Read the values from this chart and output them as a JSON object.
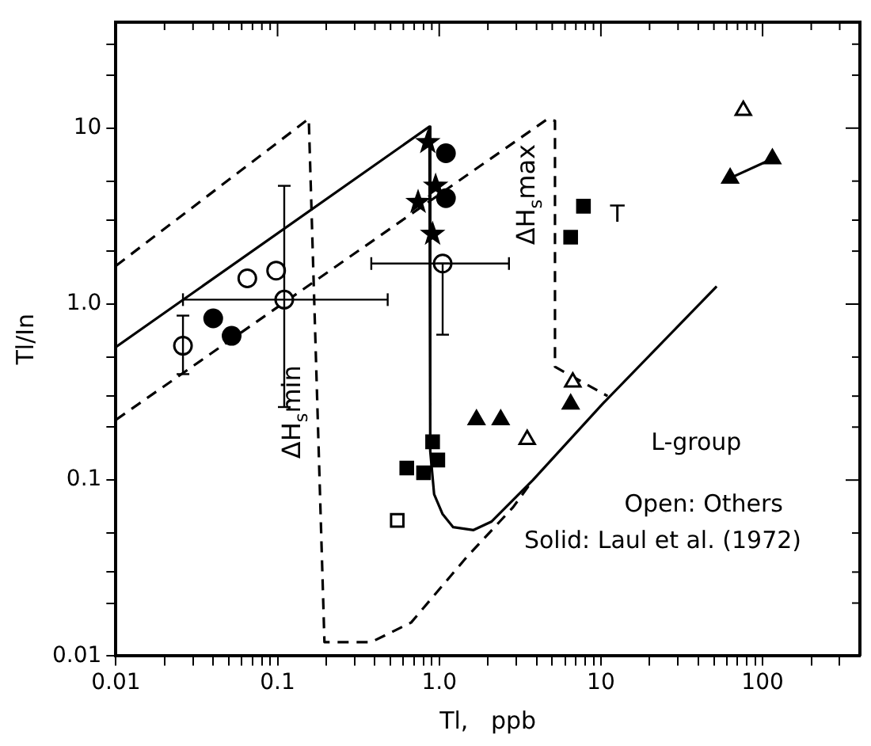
{
  "chart_data": {
    "type": "scatter",
    "xlabel": "Tl,   ppb",
    "ylabel": "Tl/In",
    "log": "xy",
    "grid": false,
    "legend": false,
    "xlim": [
      0.01,
      400
    ],
    "ylim": [
      0.01,
      40
    ],
    "xticks": [
      0.01,
      {
        "value": 0.02,
        "label": null
      },
      {
        "value": 0.03,
        "label": null
      },
      {
        "value": 0.04,
        "label": null
      },
      {
        "value": 0.05,
        "label": null
      },
      {
        "value": 0.06,
        "label": null
      },
      {
        "value": 0.07,
        "label": null
      },
      {
        "value": 0.08,
        "label": null
      },
      {
        "value": 0.09,
        "label": null
      },
      0.1,
      {
        "value": 0.2,
        "label": null
      },
      {
        "value": 0.3,
        "label": null
      },
      {
        "value": 0.4,
        "label": null
      },
      {
        "value": 0.5,
        "label": null
      },
      {
        "value": 0.6,
        "label": null
      },
      {
        "value": 0.7,
        "label": null
      },
      {
        "value": 0.8,
        "label": null
      },
      {
        "value": 0.9,
        "label": null
      },
      {
        "value": 1,
        "label": "1.0"
      },
      {
        "value": 2,
        "label": null
      },
      {
        "value": 3,
        "label": null
      },
      {
        "value": 4,
        "label": null
      },
      {
        "value": 5,
        "label": null
      },
      {
        "value": 6,
        "label": null
      },
      {
        "value": 7,
        "label": null
      },
      {
        "value": 8,
        "label": null
      },
      {
        "value": 9,
        "label": null
      },
      10,
      {
        "value": 20,
        "label": null
      },
      {
        "value": 30,
        "label": null
      },
      {
        "value": 40,
        "label": null
      },
      {
        "value": 50,
        "label": null
      },
      {
        "value": 60,
        "label": null
      },
      {
        "value": 70,
        "label": null
      },
      {
        "value": 80,
        "label": null
      },
      {
        "value": 90,
        "label": null
      },
      100,
      {
        "value": 200,
        "label": null
      },
      {
        "value": 300,
        "label": null
      }
    ],
    "yticks": [
      0.01,
      {
        "value": 0.02,
        "label": null
      },
      {
        "value": 0.03,
        "label": null
      },
      {
        "value": 0.05,
        "label": null
      },
      0.1,
      {
        "value": 0.2,
        "label": null
      },
      {
        "value": 0.3,
        "label": null
      },
      {
        "value": 0.5,
        "label": null
      },
      {
        "value": 1,
        "label": "1.0"
      },
      {
        "value": 2,
        "label": null
      },
      {
        "value": 3,
        "label": null
      },
      {
        "value": 5,
        "label": null
      },
      10,
      {
        "value": 20,
        "label": null
      },
      {
        "value": 30,
        "label": null
      }
    ],
    "series": [
      {
        "type": "line",
        "marker": "none",
        "line_style": "solid",
        "color": "#000000",
        "x": [
          0.01,
          0.87,
          0.88,
          0.93,
          1.05,
          1.22,
          1.63,
          2.1,
          3.8,
          10.2,
          52
        ],
        "values": [
          0.57,
          10.2,
          0.146,
          0.083,
          0.064,
          0.054,
          0.052,
          0.058,
          0.1,
          0.27,
          1.26
        ]
      },
      {
        "type": "line",
        "marker": "none",
        "line_style": "dashed",
        "color": "#000000",
        "x": [
          0.01,
          0.156,
          0.195,
          0.38,
          0.67,
          1.46,
          2.86,
          3.8
        ],
        "values": [
          1.65,
          11.3,
          0.012,
          0.012,
          0.0155,
          0.036,
          0.07,
          0.1
        ]
      },
      {
        "type": "line",
        "marker": "none",
        "line_style": "dashed",
        "color": "#000000",
        "x": [
          0.01,
          4.7,
          5.2,
          5.2,
          11
        ],
        "values": [
          0.22,
          11.3,
          11,
          0.44,
          0.3
        ]
      },
      {
        "marker": "circle",
        "color": "#000000",
        "x": [
          0.026,
          0.065,
          0.098,
          0.11,
          1.05
        ],
        "values": [
          0.58,
          1.4,
          1.55,
          1.06,
          1.7
        ],
        "errors": [
          [
            0.4,
            0.86
          ],
          null,
          null,
          [
            0.26,
            4.7
          ],
          [
            0.67,
            1.7
          ]
        ],
        "xerrors": [
          null,
          null,
          null,
          [
            0.026,
            0.48
          ],
          [
            0.38,
            2.7
          ]
        ]
      },
      {
        "marker": "circle",
        "color": "#000000",
        "x": [
          0.04,
          0.052,
          1.1,
          1.1
        ],
        "values": [
          0.83,
          0.66,
          7.2,
          4.0
        ]
      },
      {
        "marker": "star",
        "color": "#000000",
        "x": [
          0.85,
          0.74,
          0.95,
          0.91
        ],
        "values": [
          8.3,
          3.8,
          4.7,
          2.5
        ]
      },
      {
        "marker": "square",
        "color": "#000000",
        "x": [
          0.63,
          0.8,
          0.91,
          0.98,
          7.8,
          6.5
        ],
        "values": [
          0.117,
          0.11,
          0.165,
          0.13,
          3.6,
          2.4
        ]
      },
      {
        "marker": "square",
        "color": "#000000",
        "x": [
          0.55
        ],
        "values": [
          0.059
        ]
      },
      {
        "marker": "triangle",
        "color": "#000000",
        "x": [
          1.7,
          2.4,
          6.5
        ],
        "values": [
          0.22,
          0.22,
          0.27
        ]
      },
      {
        "type": "line",
        "marker": "triangle",
        "line_style": "solid",
        "color": "#000000",
        "x": [
          63,
          115
        ],
        "values": [
          5.2,
          6.7
        ]
      },
      {
        "marker": "triangle",
        "color": "#000000",
        "x": [
          3.5,
          6.7,
          76
        ],
        "values": [
          0.17,
          0.36,
          12.6
        ]
      }
    ],
    "annotations": [
      "ΔH$_{s}$min",
      "ΔH$_{s}$max",
      "T",
      "L-group",
      "Open: Others",
      "Solid: Laul et al. (1972)"
    ]
  }
}
